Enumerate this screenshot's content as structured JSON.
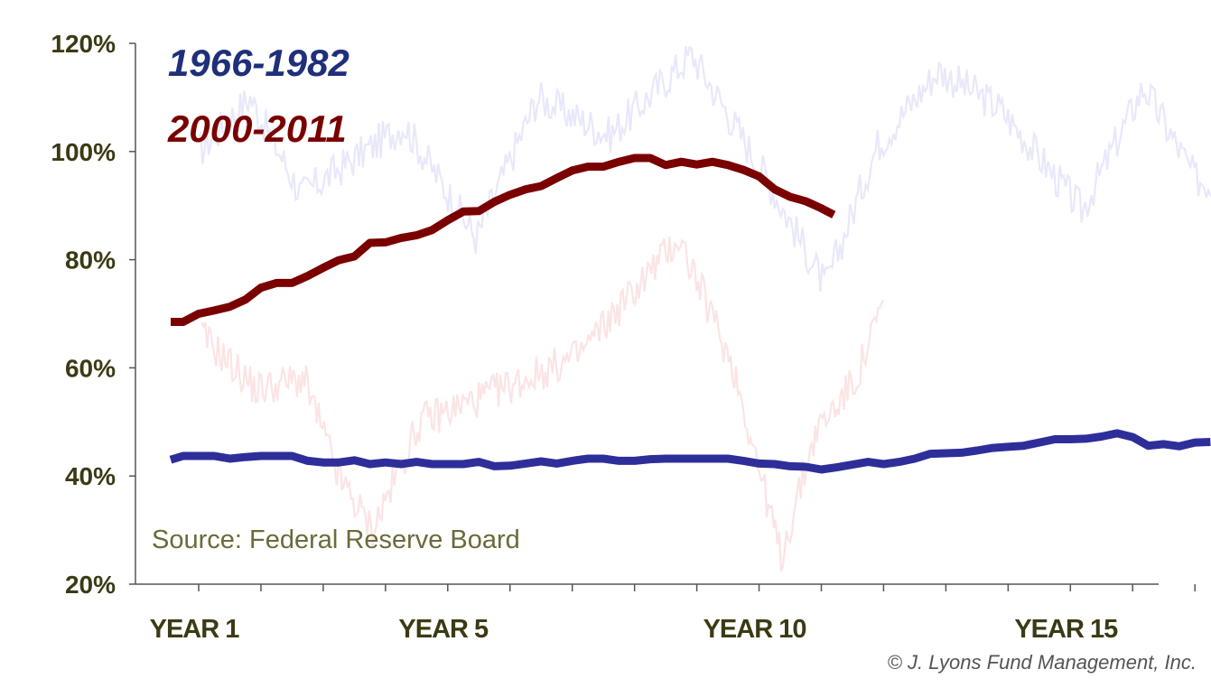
{
  "chart_data": {
    "type": "line",
    "ylim": [
      20,
      120
    ],
    "y_ticks": [
      "20%",
      "40%",
      "60%",
      "80%",
      "100%",
      "120%"
    ],
    "y_tick_values": [
      20,
      40,
      60,
      80,
      100,
      120
    ],
    "xlim": [
      0.5,
      17.5
    ],
    "x_tick_labels": [
      {
        "label": "YEAR 1",
        "x": 1
      },
      {
        "label": "YEAR 5",
        "x": 5
      },
      {
        "label": "YEAR 10",
        "x": 10
      },
      {
        "label": "YEAR 15",
        "x": 15
      }
    ],
    "x_minor_ticks": [
      1,
      2,
      3,
      4,
      5,
      6,
      7,
      8,
      9,
      10,
      11,
      12,
      13,
      14,
      15,
      16,
      17
    ],
    "grid": false,
    "legend_placement": "top-left",
    "series": [
      {
        "name": "1966-1982",
        "color": "#2e2e9a",
        "label_color": "#1f2f7a",
        "x": [
          0.55,
          0.75,
          1.0,
          1.25,
          1.5,
          1.75,
          2.0,
          2.25,
          2.5,
          2.75,
          3.0,
          3.25,
          3.5,
          3.75,
          4.0,
          4.25,
          4.5,
          4.75,
          5.0,
          5.25,
          5.5,
          5.75,
          6.0,
          6.25,
          6.5,
          6.75,
          7.0,
          7.25,
          7.5,
          7.75,
          8.0,
          8.25,
          8.5,
          8.75,
          9.0,
          9.25,
          9.5,
          9.75,
          10.0,
          10.25,
          10.5,
          10.75,
          11.0,
          11.25,
          11.5,
          11.75,
          12.0,
          12.25,
          12.5,
          12.75,
          13.0,
          13.25,
          13.5,
          13.75,
          14.0,
          14.25,
          14.5,
          14.75,
          15.0,
          15.25,
          15.5,
          15.75,
          16.0,
          16.25,
          16.5,
          16.75,
          17.0,
          17.25
        ],
        "values": [
          43,
          43.7,
          43.7,
          43.7,
          43.2,
          43.5,
          43.7,
          43.7,
          43.7,
          42.8,
          42.5,
          42.5,
          42.9,
          42.2,
          42.5,
          42.2,
          42.6,
          42.2,
          42.2,
          42.2,
          42.6,
          41.8,
          41.9,
          42.3,
          42.7,
          42.3,
          42.8,
          43.2,
          43.2,
          42.8,
          42.8,
          43.1,
          43.2,
          43.2,
          43.2,
          43.2,
          43.2,
          42.8,
          42.3,
          42.2,
          41.8,
          41.7,
          41.2,
          41.6,
          42.1,
          42.6,
          42.2,
          42.6,
          43.2,
          44.1,
          44.2,
          44.3,
          44.7,
          45.2,
          45.4,
          45.6,
          46.2,
          46.8,
          46.8,
          46.9,
          47.3,
          47.9,
          47.2,
          45.6,
          45.9,
          45.5,
          46.2,
          46.3
        ]
      },
      {
        "name": "2000-2011",
        "color": "#7a0000",
        "label_color": "#7a0000",
        "x": [
          0.55,
          0.75,
          1.0,
          1.25,
          1.5,
          1.75,
          2.0,
          2.25,
          2.5,
          2.75,
          3.0,
          3.25,
          3.5,
          3.75,
          4.0,
          4.25,
          4.5,
          4.75,
          5.0,
          5.25,
          5.5,
          5.75,
          6.0,
          6.25,
          6.5,
          6.75,
          7.0,
          7.25,
          7.5,
          7.75,
          8.0,
          8.25,
          8.5,
          8.75,
          9.0,
          9.25,
          9.5,
          9.75,
          10.0,
          10.25,
          10.5,
          10.75,
          11.0,
          11.2
        ],
        "values": [
          68.5,
          68.5,
          70,
          70.6,
          71.3,
          72.6,
          74.8,
          75.7,
          75.7,
          77,
          78.5,
          79.9,
          80.6,
          83.1,
          83.2,
          84,
          84.5,
          85.5,
          87.3,
          88.9,
          89,
          90.7,
          92,
          93,
          93.6,
          95.1,
          96.5,
          97.2,
          97.2,
          98.1,
          98.8,
          98.8,
          97.5,
          98.1,
          97.6,
          98.1,
          97.5,
          96.6,
          95.4,
          93,
          91.6,
          90.8,
          89.5,
          88.3
        ]
      }
    ]
  },
  "background_series": [
    {
      "color": "#e8e8fb"
    },
    {
      "color": "#fbe4e4"
    }
  ],
  "annotations": {
    "source": "Source: Federal Reserve Board",
    "credit": "© J. Lyons Fund Management, Inc."
  }
}
